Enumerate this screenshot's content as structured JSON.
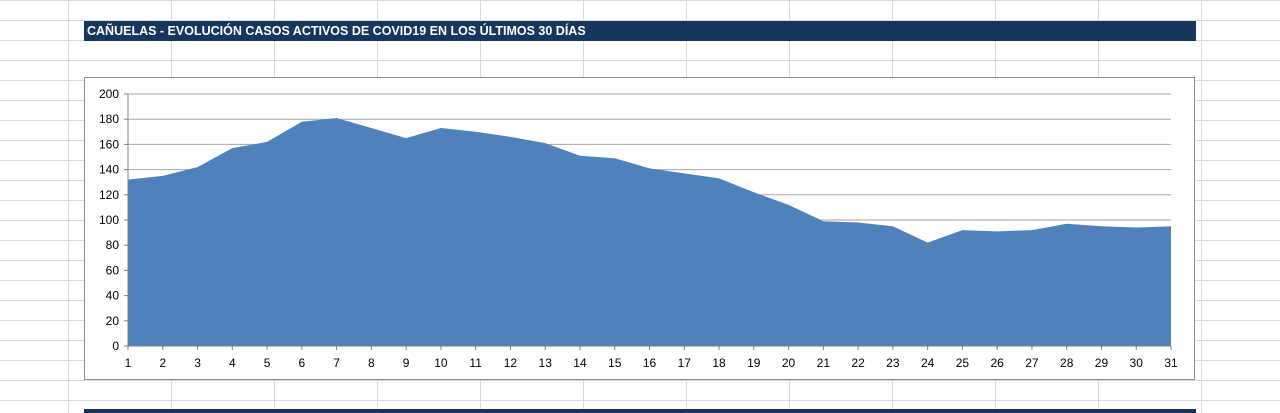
{
  "title": "CAÑUELAS - EVOLUCIÓN CASOS ACTIVOS DE COVID19 EN LOS ÚLTIMOS 30 DÍAS",
  "colors": {
    "title_bar": "#17365d",
    "area_fill": "#4f81bd",
    "gridline": "#a6a6a6"
  },
  "chart_data": {
    "type": "area",
    "title": "",
    "xlabel": "",
    "ylabel": "",
    "grid": true,
    "legend": "none",
    "ylim": [
      0,
      200
    ],
    "y_ticks": [
      0,
      20,
      40,
      60,
      80,
      100,
      120,
      140,
      160,
      180,
      200
    ],
    "x": [
      1,
      2,
      3,
      4,
      5,
      6,
      7,
      8,
      9,
      10,
      11,
      12,
      13,
      14,
      15,
      16,
      17,
      18,
      19,
      20,
      21,
      22,
      23,
      24,
      25,
      26,
      27,
      28,
      29,
      30,
      31
    ],
    "series": [
      {
        "values": [
          132,
          135,
          142,
          157,
          162,
          178,
          181,
          173,
          165,
          173,
          170,
          166,
          161,
          151,
          149,
          141,
          137,
          133,
          122,
          112,
          99,
          98,
          95,
          82,
          92,
          91,
          92,
          97,
          95,
          94,
          95
        ]
      }
    ]
  }
}
